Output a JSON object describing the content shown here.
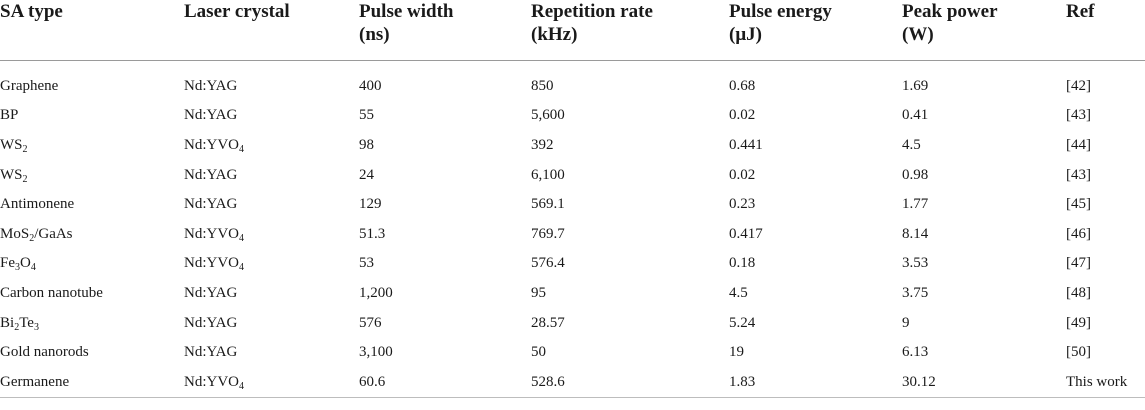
{
  "table": {
    "headers": [
      {
        "lines": [
          "SA type"
        ]
      },
      {
        "lines": [
          "Laser crystal"
        ]
      },
      {
        "lines": [
          "Pulse width",
          "(ns)"
        ]
      },
      {
        "lines": [
          "Repetition rate",
          "(kHz)"
        ]
      },
      {
        "lines": [
          "Pulse energy",
          "(μJ)"
        ]
      },
      {
        "lines": [
          "Peak power",
          "(W)"
        ]
      },
      {
        "lines": [
          "Ref"
        ]
      }
    ],
    "rows": [
      {
        "sa": [
          [
            "Graphene",
            ""
          ]
        ],
        "crystal": [
          [
            "Nd:YAG",
            ""
          ]
        ],
        "pulse_width": "400",
        "rep_rate": "850",
        "energy": "0.68",
        "peak": "1.69",
        "ref": "[42]"
      },
      {
        "sa": [
          [
            "BP",
            ""
          ]
        ],
        "crystal": [
          [
            "Nd:YAG",
            ""
          ]
        ],
        "pulse_width": "55",
        "rep_rate": "5,600",
        "energy": "0.02",
        "peak": "0.41",
        "ref": "[43]"
      },
      {
        "sa": [
          [
            "WS",
            "2"
          ]
        ],
        "crystal": [
          [
            "Nd:YVO",
            "4"
          ]
        ],
        "pulse_width": "98",
        "rep_rate": "392",
        "energy": "0.441",
        "peak": "4.5",
        "ref": "[44]"
      },
      {
        "sa": [
          [
            "WS",
            "2"
          ]
        ],
        "crystal": [
          [
            "Nd:YAG",
            ""
          ]
        ],
        "pulse_width": "24",
        "rep_rate": "6,100",
        "energy": "0.02",
        "peak": "0.98",
        "ref": "[43]"
      },
      {
        "sa": [
          [
            "Antimonene",
            ""
          ]
        ],
        "crystal": [
          [
            "Nd:YAG",
            ""
          ]
        ],
        "pulse_width": "129",
        "rep_rate": "569.1",
        "energy": "0.23",
        "peak": "1.77",
        "ref": "[45]"
      },
      {
        "sa": [
          [
            "MoS",
            "2"
          ],
          [
            "/GaAs",
            ""
          ]
        ],
        "crystal": [
          [
            "Nd:YVO",
            "4"
          ]
        ],
        "pulse_width": "51.3",
        "rep_rate": "769.7",
        "energy": "0.417",
        "peak": "8.14",
        "ref": "[46]"
      },
      {
        "sa": [
          [
            "Fe",
            "3"
          ],
          [
            "O",
            "4"
          ]
        ],
        "crystal": [
          [
            "Nd:YVO",
            "4"
          ]
        ],
        "pulse_width": "53",
        "rep_rate": "576.4",
        "energy": "0.18",
        "peak": "3.53",
        "ref": "[47]"
      },
      {
        "sa": [
          [
            "Carbon nanotube",
            ""
          ]
        ],
        "crystal": [
          [
            "Nd:YAG",
            ""
          ]
        ],
        "pulse_width": "1,200",
        "rep_rate": "95",
        "energy": "4.5",
        "peak": "3.75",
        "ref": "[48]"
      },
      {
        "sa": [
          [
            "Bi",
            "2"
          ],
          [
            "Te",
            "3"
          ]
        ],
        "crystal": [
          [
            "Nd:YAG",
            ""
          ]
        ],
        "pulse_width": "576",
        "rep_rate": "28.57",
        "energy": "5.24",
        "peak": "9",
        "ref": "[49]"
      },
      {
        "sa": [
          [
            "Gold nanorods",
            ""
          ]
        ],
        "crystal": [
          [
            "Nd:YAG",
            ""
          ]
        ],
        "pulse_width": "3,100",
        "rep_rate": "50",
        "energy": "19",
        "peak": "6.13",
        "ref": "[50]"
      },
      {
        "sa": [
          [
            "Germanene",
            ""
          ]
        ],
        "crystal": [
          [
            "Nd:YVO",
            "4"
          ]
        ],
        "pulse_width": "60.6",
        "rep_rate": "528.6",
        "energy": "1.83",
        "peak": "30.12",
        "ref": "This work"
      }
    ]
  }
}
